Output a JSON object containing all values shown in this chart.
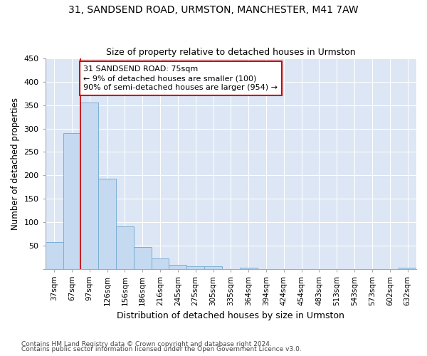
{
  "title1": "31, SANDSEND ROAD, URMSTON, MANCHESTER, M41 7AW",
  "title2": "Size of property relative to detached houses in Urmston",
  "xlabel": "Distribution of detached houses by size in Urmston",
  "ylabel": "Number of detached properties",
  "footnote1": "Contains HM Land Registry data © Crown copyright and database right 2024.",
  "footnote2": "Contains public sector information licensed under the Open Government Licence v3.0.",
  "categories": [
    "37sqm",
    "67sqm",
    "97sqm",
    "126sqm",
    "156sqm",
    "186sqm",
    "216sqm",
    "245sqm",
    "275sqm",
    "305sqm",
    "335sqm",
    "364sqm",
    "394sqm",
    "424sqm",
    "454sqm",
    "483sqm",
    "513sqm",
    "543sqm",
    "573sqm",
    "602sqm",
    "632sqm"
  ],
  "values": [
    57,
    290,
    355,
    192,
    90,
    46,
    22,
    9,
    5,
    5,
    0,
    3,
    0,
    0,
    0,
    0,
    0,
    0,
    0,
    0,
    3
  ],
  "bar_color": "#c5d9f1",
  "bar_edge_color": "#7bafd4",
  "vline_x": 1.5,
  "vline_color": "#cc0000",
  "annotation_text": "31 SANDSEND ROAD: 75sqm\n← 9% of detached houses are smaller (100)\n90% of semi-detached houses are larger (954) →",
  "annotation_box_color": "#ffffff",
  "annotation_box_edge_color": "#cc0000",
  "ylim": [
    0,
    450
  ],
  "yticks": [
    0,
    50,
    100,
    150,
    200,
    250,
    300,
    350,
    400,
    450
  ],
  "background_color": "#ffffff",
  "axes_background": "#dce6f5",
  "grid_color": "#ffffff",
  "title1_fontsize": 10,
  "title2_fontsize": 9,
  "xlabel_fontsize": 9,
  "ylabel_fontsize": 8.5
}
